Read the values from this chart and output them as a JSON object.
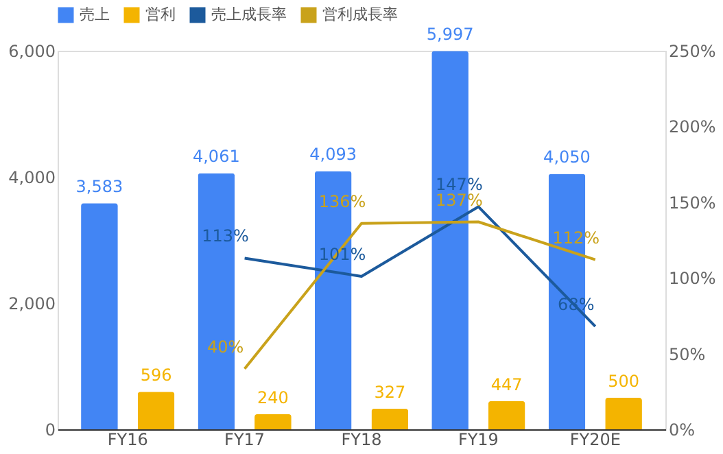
{
  "chart_data": {
    "type": "bar",
    "categories": [
      "FY16",
      "FY17",
      "FY18",
      "FY19",
      "FY20E"
    ],
    "series": [
      {
        "name": "売上",
        "color": "#4285f4",
        "values": [
          3583,
          4061,
          4093,
          5997,
          4050
        ],
        "value_labels": [
          "3,583",
          "4,061",
          "4,093",
          "5,997",
          "4,050"
        ]
      },
      {
        "name": "営利",
        "color": "#f4b400",
        "values": [
          596,
          240,
          327,
          447,
          500
        ],
        "value_labels": [
          "596",
          "240",
          "327",
          "447",
          "500"
        ]
      },
      {
        "name": "売上成長率",
        "type": "line",
        "axis": "y2",
        "color": "#1c5a9c",
        "values": [
          null,
          113,
          101,
          147,
          68
        ],
        "value_labels": [
          null,
          "113%",
          "101%",
          "147%",
          "68%"
        ]
      },
      {
        "name": "営利成長率",
        "type": "line",
        "axis": "y2",
        "color": "#c9a21b",
        "values": [
          null,
          40,
          136,
          137,
          112
        ],
        "value_labels": [
          null,
          "40%",
          "136%",
          "137%",
          "112%"
        ]
      }
    ],
    "ylim": [
      0,
      6000
    ],
    "yticks": [
      {
        "value": 0,
        "label": "0"
      },
      {
        "value": 2000,
        "label": "2,000"
      },
      {
        "value": 4000,
        "label": "4,000"
      },
      {
        "value": 6000,
        "label": "6,000"
      }
    ],
    "y2lim": [
      0,
      250
    ],
    "y2ticks": [
      {
        "value": 0,
        "label": "0%"
      },
      {
        "value": 50,
        "label": "50%"
      },
      {
        "value": 100,
        "label": "100%"
      },
      {
        "value": 150,
        "label": "150%"
      },
      {
        "value": 200,
        "label": "200%"
      },
      {
        "value": 250,
        "label": "250%"
      }
    ],
    "legend": "top",
    "grid": false
  }
}
